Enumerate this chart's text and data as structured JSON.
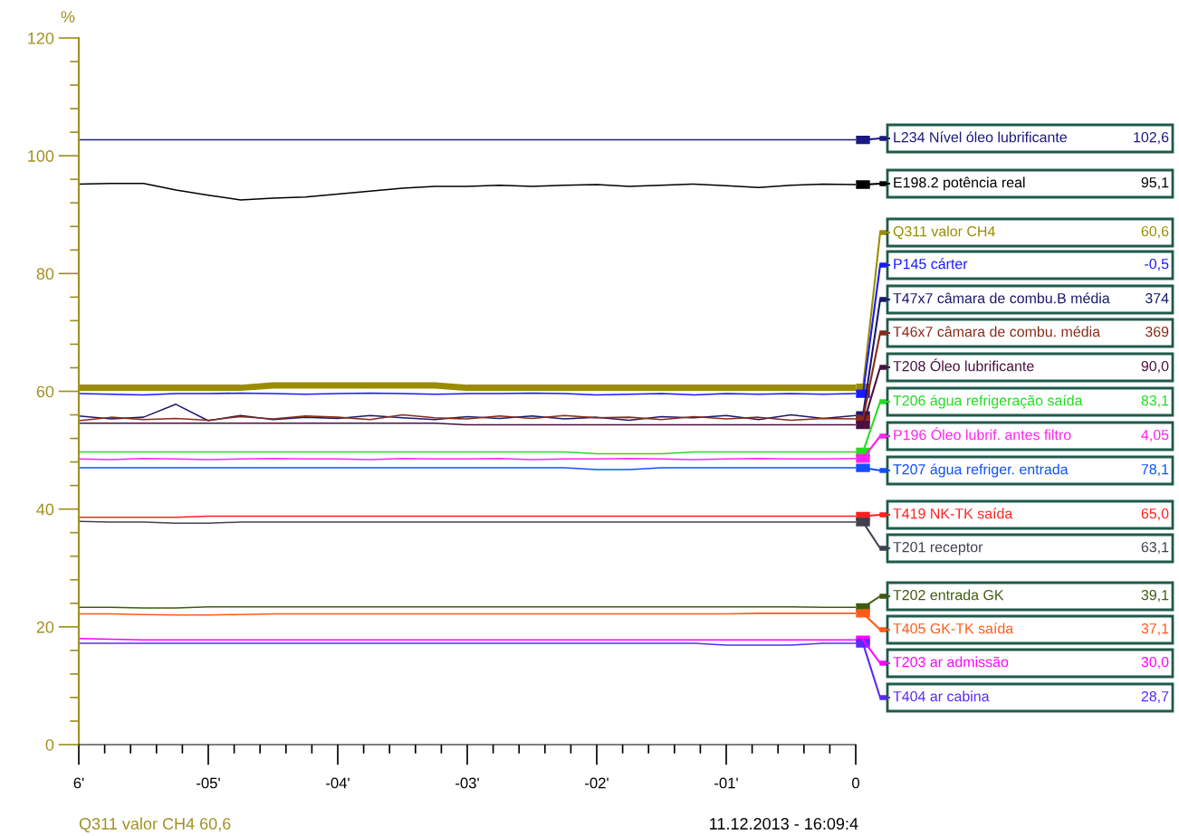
{
  "chart_data": {
    "type": "line",
    "ylabel": "%",
    "legend": "right",
    "grid": false,
    "line_style": "solid",
    "x": [
      -6,
      -5.75,
      -5.5,
      -5.25,
      -5,
      -4.75,
      -4.5,
      -4.25,
      -4,
      -3.75,
      -3.5,
      -3.25,
      -3,
      -2.75,
      -2.5,
      -2.25,
      -2,
      -1.75,
      -1.5,
      -1.25,
      -1,
      -0.75,
      -0.5,
      -0.25,
      0
    ],
    "xlim": [
      -6,
      0
    ],
    "xticks": [
      {
        "value": -6,
        "label": "6'"
      },
      {
        "value": -5.8,
        "label": null
      },
      {
        "value": -5.6,
        "label": null
      },
      {
        "value": -5.4,
        "label": null
      },
      {
        "value": -5.2,
        "label": null
      },
      {
        "value": -5,
        "label": "-05'"
      },
      {
        "value": -4.8,
        "label": null
      },
      {
        "value": -4.6,
        "label": null
      },
      {
        "value": -4.4,
        "label": null
      },
      {
        "value": -4.2,
        "label": null
      },
      {
        "value": -4,
        "label": "-04'"
      },
      {
        "value": -3.8,
        "label": null
      },
      {
        "value": -3.6,
        "label": null
      },
      {
        "value": -3.4,
        "label": null
      },
      {
        "value": -3.2,
        "label": null
      },
      {
        "value": -3,
        "label": "-03'"
      },
      {
        "value": -2.8,
        "label": null
      },
      {
        "value": -2.6,
        "label": null
      },
      {
        "value": -2.4,
        "label": null
      },
      {
        "value": -2.2,
        "label": null
      },
      {
        "value": -2,
        "label": "-02'"
      },
      {
        "value": -1.8,
        "label": null
      },
      {
        "value": -1.6,
        "label": null
      },
      {
        "value": -1.4,
        "label": null
      },
      {
        "value": -1.2,
        "label": null
      },
      {
        "value": -1,
        "label": "-01'"
      },
      {
        "value": -0.8,
        "label": null
      },
      {
        "value": -0.6,
        "label": null
      },
      {
        "value": -0.4,
        "label": null
      },
      {
        "value": -0.2,
        "label": null
      },
      {
        "value": 0,
        "label": "0"
      }
    ],
    "ylim": [
      0,
      120
    ],
    "yticks": [
      0,
      {
        "value": 4,
        "label": null
      },
      {
        "value": 8,
        "label": null
      },
      {
        "value": 12,
        "label": null
      },
      {
        "value": 16,
        "label": null
      },
      20,
      {
        "value": 24,
        "label": null
      },
      {
        "value": 28,
        "label": null
      },
      {
        "value": 32,
        "label": null
      },
      {
        "value": 36,
        "label": null
      },
      40,
      {
        "value": 44,
        "label": null
      },
      {
        "value": 48,
        "label": null
      },
      {
        "value": 52,
        "label": null
      },
      {
        "value": 56,
        "label": null
      },
      60,
      {
        "value": 64,
        "label": null
      },
      {
        "value": 68,
        "label": null
      },
      {
        "value": 72,
        "label": null
      },
      {
        "value": 76,
        "label": null
      },
      80,
      {
        "value": 84,
        "label": null
      },
      {
        "value": 88,
        "label": null
      },
      {
        "value": 92,
        "label": null
      },
      {
        "value": 96,
        "label": null
      },
      100,
      {
        "value": 104,
        "label": null
      },
      {
        "value": 108,
        "label": null
      },
      {
        "value": 112,
        "label": null
      },
      {
        "value": 116,
        "label": null
      },
      120
    ],
    "annotations": [
      "Q311 valor CH4 60,6",
      "11.12.2013 - 16:09:4",
      "102,6",
      "95,1",
      "60,6",
      "-0,5",
      "374",
      "369",
      "90,0",
      "83,1",
      "4,05",
      "78,1",
      "65,0",
      "63,1",
      "39,1",
      "37,1",
      "30,0",
      "28,7"
    ],
    "series": [
      {
        "name": "L234 Nível óleo lubrificante",
        "color": "#1a1a80",
        "values": [
          102.7,
          102.7,
          102.7,
          102.7,
          102.7,
          102.7,
          102.7,
          102.7,
          102.7,
          102.7,
          102.7,
          102.7,
          102.7,
          102.7,
          102.7,
          102.7,
          102.7,
          102.7,
          102.7,
          102.7,
          102.7,
          102.7,
          102.7,
          102.7,
          102.7
        ]
      },
      {
        "name": "E198.2 potência real",
        "color": "#000000",
        "values": [
          95.2,
          95.3,
          95.3,
          94.2,
          93.3,
          92.5,
          92.8,
          93.0,
          93.5,
          94.0,
          94.5,
          94.8,
          94.8,
          95.0,
          94.8,
          95.0,
          95.1,
          94.8,
          95.0,
          95.2,
          94.9,
          94.6,
          95.0,
          95.2,
          95.1
        ]
      },
      {
        "name": "Q311 valor CH4",
        "color": "#9a8c00",
        "values": [
          60.6,
          60.6,
          60.6,
          60.6,
          60.6,
          60.6,
          61.0,
          61.0,
          61.0,
          61.0,
          61.0,
          61.0,
          60.6,
          60.6,
          60.6,
          60.6,
          60.6,
          60.6,
          60.6,
          60.6,
          60.6,
          60.6,
          60.6,
          60.6,
          60.6
        ]
      },
      {
        "name": "P145 cárter",
        "color": "#1a1aff",
        "values": [
          59.6,
          59.5,
          59.4,
          59.6,
          59.6,
          59.7,
          59.6,
          59.5,
          59.6,
          59.7,
          59.6,
          59.5,
          59.6,
          59.6,
          59.7,
          59.6,
          59.4,
          59.5,
          59.6,
          59.4,
          59.6,
          59.5,
          59.6,
          59.5,
          59.6
        ]
      },
      {
        "name": "T47x7 câmara de combu.B média",
        "color": "#1a1a6b",
        "values": [
          55.8,
          55.3,
          55.6,
          57.8,
          55.0,
          55.9,
          55.2,
          55.6,
          55.4,
          55.9,
          55.5,
          55.2,
          55.7,
          55.4,
          55.8,
          55.3,
          55.6,
          55.1,
          55.7,
          55.5,
          55.9,
          55.2,
          56.0,
          55.4,
          55.9
        ]
      },
      {
        "name": "T46x7 câmara de combu. média",
        "color": "#8b2a1a",
        "values": [
          55.0,
          55.6,
          55.2,
          55.4,
          55.1,
          55.7,
          55.3,
          55.8,
          55.6,
          55.2,
          56.0,
          55.5,
          55.3,
          55.8,
          55.4,
          55.9,
          55.5,
          55.6,
          55.2,
          55.7,
          55.3,
          55.6,
          55.1,
          55.4,
          55.3
        ]
      },
      {
        "name": "T208 Óleo lubrificante",
        "color": "#4a1040",
        "values": [
          54.6,
          54.6,
          54.6,
          54.6,
          54.6,
          54.6,
          54.6,
          54.6,
          54.6,
          54.6,
          54.6,
          54.6,
          54.3,
          54.3,
          54.3,
          54.3,
          54.3,
          54.3,
          54.3,
          54.3,
          54.3,
          54.3,
          54.3,
          54.3,
          54.3
        ]
      },
      {
        "name": "T206 água refrigeração saída",
        "color": "#22dd22",
        "values": [
          49.7,
          49.7,
          49.7,
          49.7,
          49.7,
          49.7,
          49.7,
          49.7,
          49.7,
          49.7,
          49.7,
          49.7,
          49.7,
          49.7,
          49.7,
          49.7,
          49.4,
          49.4,
          49.4,
          49.7,
          49.7,
          49.7,
          49.7,
          49.7,
          49.7
        ]
      },
      {
        "name": "P196 Óleo lubrif. antes filtro",
        "color": "#ff22ee",
        "values": [
          48.5,
          48.4,
          48.6,
          48.5,
          48.4,
          48.5,
          48.6,
          48.5,
          48.5,
          48.4,
          48.6,
          48.5,
          48.5,
          48.6,
          48.4,
          48.5,
          48.5,
          48.6,
          48.5,
          48.4,
          48.5,
          48.6,
          48.5,
          48.5,
          48.6
        ]
      },
      {
        "name": "T207 água refriger. entrada",
        "color": "#1050ff",
        "values": [
          47.0,
          47.0,
          47.0,
          47.0,
          47.0,
          47.0,
          47.0,
          47.0,
          47.0,
          47.0,
          47.0,
          47.0,
          47.0,
          47.0,
          47.0,
          47.0,
          46.7,
          46.7,
          47.0,
          47.0,
          47.0,
          47.0,
          47.0,
          47.0,
          47.0
        ]
      },
      {
        "name": "T419 NK-TK saída",
        "color": "#ff2020",
        "values": [
          38.6,
          38.6,
          38.6,
          38.6,
          38.8,
          38.8,
          38.8,
          38.8,
          38.8,
          38.8,
          38.8,
          38.8,
          38.8,
          38.8,
          38.8,
          38.8,
          38.8,
          38.8,
          38.8,
          38.8,
          38.8,
          38.8,
          38.8,
          38.8,
          38.8
        ]
      },
      {
        "name": "T201 receptor",
        "color": "#404050",
        "values": [
          37.9,
          37.8,
          37.8,
          37.6,
          37.6,
          37.8,
          37.8,
          37.8,
          37.8,
          37.8,
          37.8,
          37.8,
          37.8,
          37.8,
          37.8,
          37.8,
          37.8,
          37.8,
          37.8,
          37.8,
          37.8,
          37.8,
          37.8,
          37.8,
          37.8
        ]
      },
      {
        "name": "T202 entrada GK",
        "color": "#3f5a10",
        "values": [
          23.3,
          23.3,
          23.2,
          23.2,
          23.4,
          23.4,
          23.4,
          23.4,
          23.4,
          23.4,
          23.4,
          23.4,
          23.4,
          23.4,
          23.4,
          23.4,
          23.4,
          23.4,
          23.4,
          23.4,
          23.4,
          23.4,
          23.4,
          23.3,
          23.3
        ]
      },
      {
        "name": "T405 GK-TK saída",
        "color": "#ff5a1a",
        "values": [
          22.2,
          22.2,
          22.1,
          22.0,
          22.0,
          22.1,
          22.2,
          22.2,
          22.2,
          22.2,
          22.2,
          22.2,
          22.2,
          22.2,
          22.2,
          22.2,
          22.2,
          22.2,
          22.2,
          22.2,
          22.2,
          22.3,
          22.3,
          22.3,
          22.3
        ]
      },
      {
        "name": "T203 ar admissão",
        "color": "#ff00ff",
        "values": [
          18.0,
          17.9,
          17.8,
          17.8,
          17.8,
          17.8,
          17.8,
          17.8,
          17.8,
          17.8,
          17.8,
          17.8,
          17.8,
          17.8,
          17.8,
          17.8,
          17.8,
          17.8,
          17.8,
          17.8,
          17.8,
          17.8,
          17.8,
          17.8,
          17.8
        ]
      },
      {
        "name": "T404 ar cabina",
        "color": "#5a2aff",
        "values": [
          17.2,
          17.2,
          17.2,
          17.2,
          17.2,
          17.2,
          17.2,
          17.2,
          17.2,
          17.2,
          17.2,
          17.2,
          17.2,
          17.2,
          17.2,
          17.2,
          17.2,
          17.2,
          17.2,
          17.2,
          16.9,
          16.9,
          16.9,
          17.2,
          17.2
        ]
      }
    ]
  }
}
